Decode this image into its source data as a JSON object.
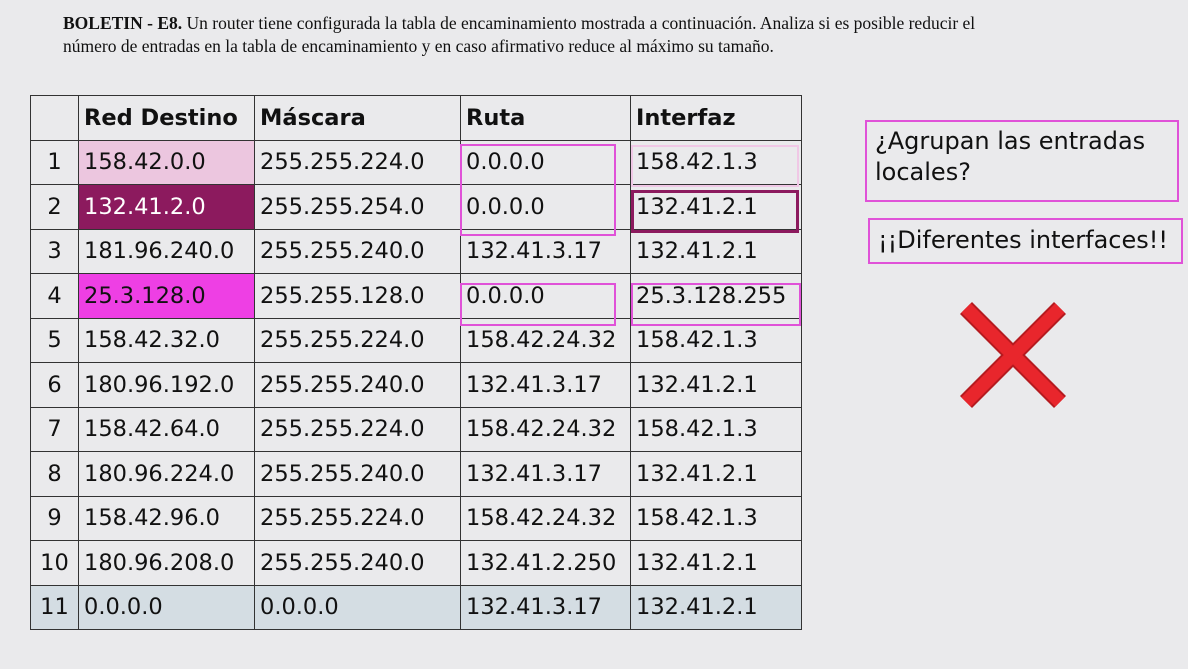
{
  "problem": {
    "label": "BOLETIN - E8.",
    "text": " Un router tiene configurada la tabla de encaminamiento mostrada a continuación. Analiza si es posible reducir el número de entradas en la tabla de encaminamiento y en caso afirmativo reduce al máximo su tamaño."
  },
  "table": {
    "headers": [
      "",
      "Red Destino",
      "Máscara",
      "Ruta",
      "Interfaz"
    ],
    "rows": [
      [
        "1",
        "158.42.0.0",
        "255.255.224.0",
        "0.0.0.0",
        "158.42.1.3"
      ],
      [
        "2",
        "132.41.2.0",
        "255.255.254.0",
        "0.0.0.0",
        "132.41.2.1"
      ],
      [
        "3",
        "181.96.240.0",
        "255.255.240.0",
        "132.41.3.17",
        "132.41.2.1"
      ],
      [
        "4",
        "25.3.128.0",
        "255.255.128.0",
        "0.0.0.0",
        "25.3.128.255"
      ],
      [
        "5",
        "158.42.32.0",
        "255.255.224.0",
        "158.42.24.32",
        "158.42.1.3"
      ],
      [
        "6",
        "180.96.192.0",
        "255.255.240.0",
        "132.41.3.17",
        "132.41.2.1"
      ],
      [
        "7",
        "158.42.64.0",
        "255.255.224.0",
        "158.42.24.32",
        "158.42.1.3"
      ],
      [
        "8",
        "180.96.224.0",
        "255.255.240.0",
        "132.41.3.17",
        "132.41.2.1"
      ],
      [
        "9",
        "158.42.96.0",
        "255.255.224.0",
        "158.42.24.32",
        "158.42.1.3"
      ],
      [
        "10",
        "180.96.208.0",
        "255.255.240.0",
        "132.41.2.250",
        "132.41.2.1"
      ],
      [
        "11",
        "0.0.0.0",
        "0.0.0.0",
        "132.41.3.17",
        "132.41.2.1"
      ]
    ]
  },
  "annotations": {
    "question": "¿Agrupan las entradas locales?",
    "warning": "¡¡Diferentes interfaces!!",
    "verdict_icon": "red-x-icon"
  },
  "colors": {
    "highlight_light": "#ecc6df",
    "highlight_dark": "#8c1a5e",
    "highlight_pink": "#ee3fe4",
    "default_route_row": "#d4dde3",
    "annotation_border": "#e052d8",
    "cross": "#e8262c"
  }
}
